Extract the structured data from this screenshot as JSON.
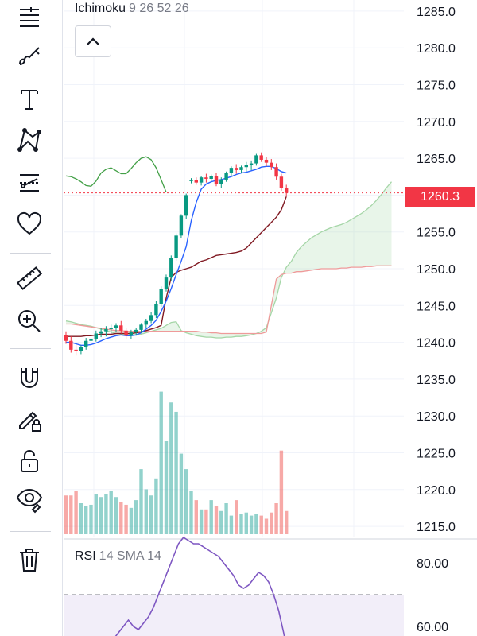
{
  "toolbar": {
    "tools": [
      {
        "name": "crosshair-lines-icon"
      },
      {
        "name": "brush-icon"
      },
      {
        "name": "text-icon"
      },
      {
        "name": "pattern-icon"
      },
      {
        "name": "forecast-icon"
      },
      {
        "name": "heart-icon"
      },
      {
        "name": "ruler-icon"
      },
      {
        "name": "zoom-in-icon"
      },
      {
        "name": "magnet-icon"
      },
      {
        "name": "lock-drawing-icon"
      },
      {
        "name": "unlock-icon"
      },
      {
        "name": "eye-icon"
      },
      {
        "name": "trash-icon"
      }
    ]
  },
  "ichimoku": {
    "name": "Ichimoku",
    "params": "9 26 52 26"
  },
  "rsi": {
    "name": "RSI",
    "params": "14 SMA 14"
  },
  "last_price": {
    "label": "1260.3",
    "value": 1260.3,
    "color": "#f23645"
  },
  "colors": {
    "up": "#089981",
    "down": "#f23645",
    "conversion": "#2962ff",
    "base": "#801922",
    "lagging": "#43a047",
    "lead_a": "#a5d6a7",
    "lead_b": "#ef9a9a",
    "vol_up": "#26a69a80",
    "vol_down": "#ef535080",
    "rsi_line": "#7e57c2"
  },
  "chart_data": [
    {
      "type": "candlestick",
      "price_axis": {
        "ticks": [
          "1285.0",
          "1280.0",
          "1275.0",
          "1270.0",
          "1265.0",
          "1260.0",
          "1255.0",
          "1250.0",
          "1245.0",
          "1240.0",
          "1235.0",
          "1230.0",
          "1225.0",
          "1220.0",
          "1215.0"
        ],
        "range": [
          1213.5,
          1286.5
        ]
      },
      "candles": [
        [
          1241.0,
          1241.5,
          1239.8,
          1240.2
        ],
        [
          1240.2,
          1240.8,
          1238.6,
          1239.0
        ],
        [
          1239.0,
          1239.6,
          1238.2,
          1238.8
        ],
        [
          1238.8,
          1239.6,
          1238.4,
          1239.4
        ],
        [
          1239.4,
          1240.6,
          1239.0,
          1240.2
        ],
        [
          1240.2,
          1240.9,
          1239.6,
          1240.5
        ],
        [
          1240.5,
          1241.6,
          1240.1,
          1241.2
        ],
        [
          1241.2,
          1241.9,
          1240.7,
          1241.5
        ],
        [
          1241.5,
          1242.2,
          1240.8,
          1241.8
        ],
        [
          1241.8,
          1242.4,
          1241.2,
          1241.9
        ],
        [
          1241.9,
          1242.6,
          1241.4,
          1242.3
        ],
        [
          1242.3,
          1242.9,
          1241.2,
          1241.6
        ],
        [
          1241.6,
          1241.9,
          1240.5,
          1240.9
        ],
        [
          1240.9,
          1241.7,
          1240.5,
          1241.4
        ],
        [
          1241.4,
          1242.0,
          1240.9,
          1241.7
        ],
        [
          1241.7,
          1242.6,
          1241.3,
          1242.4
        ],
        [
          1242.4,
          1243.2,
          1242.0,
          1242.9
        ],
        [
          1242.9,
          1244.1,
          1242.6,
          1243.7
        ],
        [
          1243.7,
          1245.6,
          1243.3,
          1245.2
        ],
        [
          1245.2,
          1247.6,
          1244.8,
          1247.3
        ],
        [
          1247.3,
          1249.2,
          1246.9,
          1248.8
        ],
        [
          1248.8,
          1251.8,
          1248.4,
          1251.5
        ],
        [
          1251.5,
          1254.8,
          1251.1,
          1254.5
        ],
        [
          1254.5,
          1257.4,
          1254.1,
          1257.2
        ],
        [
          1257.2,
          1260.2,
          1256.8,
          1260.0
        ],
        [
          1262.0,
          1262.3,
          1261.6,
          1262.0
        ],
        [
          1262.0,
          1262.4,
          1261.4,
          1261.7
        ],
        [
          1261.7,
          1262.6,
          1261.3,
          1262.4
        ],
        [
          1262.4,
          1262.9,
          1261.7,
          1262.2
        ],
        [
          1262.2,
          1262.8,
          1261.8,
          1262.6
        ],
        [
          1262.6,
          1263.0,
          1261.2,
          1261.5
        ],
        [
          1261.5,
          1262.4,
          1261.0,
          1262.1
        ],
        [
          1262.1,
          1263.2,
          1261.8,
          1263.0
        ],
        [
          1263.0,
          1263.9,
          1262.6,
          1263.7
        ],
        [
          1263.7,
          1264.2,
          1262.9,
          1263.4
        ],
        [
          1263.4,
          1264.0,
          1263.0,
          1263.8
        ],
        [
          1263.8,
          1264.5,
          1263.2,
          1264.1
        ],
        [
          1264.1,
          1264.7,
          1263.4,
          1264.3
        ],
        [
          1264.3,
          1265.6,
          1264.0,
          1265.4
        ],
        [
          1265.4,
          1265.8,
          1264.5,
          1264.8
        ],
        [
          1264.8,
          1265.2,
          1263.9,
          1264.4
        ],
        [
          1264.4,
          1264.9,
          1263.4,
          1263.8
        ],
        [
          1263.8,
          1264.3,
          1262.1,
          1262.5
        ],
        [
          1262.5,
          1262.9,
          1260.6,
          1261.0
        ],
        [
          1261.0,
          1261.4,
          1259.8,
          1260.3
        ]
      ],
      "conversion_line": [
        1240.0,
        1240.0,
        1239.8,
        1239.6,
        1239.6,
        1239.7,
        1239.9,
        1240.2,
        1240.5,
        1240.7,
        1240.9,
        1241.0,
        1240.9,
        1240.9,
        1241.0,
        1241.3,
        1241.8,
        1242.3,
        1243.0,
        1244.2,
        1245.6,
        1247.3,
        1249.2,
        1251.0,
        1253.0,
        1256.5,
        1259.0,
        1260.8,
        1261.5,
        1261.8,
        1262.0,
        1262.1,
        1262.3,
        1262.5,
        1262.8,
        1263.0,
        1263.1,
        1263.3,
        1263.5,
        1263.8,
        1263.9,
        1263.9,
        1263.6,
        1263.2,
        1263.0
      ],
      "base_line": [
        1240.8,
        1240.8,
        1240.8,
        1240.8,
        1240.9,
        1240.9,
        1241.0,
        1241.1,
        1241.1,
        1241.1,
        1241.2,
        1241.2,
        1241.2,
        1241.2,
        1241.3,
        1241.4,
        1241.6,
        1241.8,
        1242.0,
        1242.3,
        1246.0,
        1248.8,
        1249.5,
        1249.8,
        1250.0,
        1250.2,
        1250.6,
        1251.0,
        1251.2,
        1251.5,
        1251.8,
        1251.9,
        1252.0,
        1252.1,
        1252.2,
        1252.4,
        1252.8,
        1253.5,
        1254.2,
        1254.9,
        1255.6,
        1256.3,
        1257.0,
        1258.0,
        1259.8
      ],
      "lagging_span": [
        1262.6,
        1262.5,
        1262.2,
        1261.8,
        1261.3,
        1261.2,
        1261.9,
        1263.0,
        1263.5,
        1263.7,
        1263.3,
        1262.9,
        1262.9,
        1263.6,
        1264.4,
        1265.0,
        1265.2,
        1264.8,
        1263.7,
        1262.1,
        1260.4
      ],
      "leading_span_a": [
        1242.9,
        1242.8,
        1242.6,
        1242.4,
        1242.3,
        1242.2,
        1242.0,
        1241.8,
        1241.6,
        1241.4,
        1241.2,
        1241.1,
        1241.0,
        1241.0,
        1241.0,
        1241.1,
        1241.3,
        1241.5,
        1241.7,
        1241.9,
        1242.3,
        1242.7,
        1242.8,
        1241.6,
        1241.3,
        1241.1,
        1240.9,
        1240.8,
        1240.7,
        1240.7,
        1240.6,
        1240.6,
        1240.7,
        1240.7,
        1240.8,
        1240.8,
        1240.9,
        1241.0,
        1241.2,
        1241.5,
        1242.0,
        1244.0,
        1246.0,
        1248.8,
        1250.2,
        1251.0,
        1252.2,
        1253.0,
        1253.6,
        1254.2,
        1254.6,
        1255.0,
        1255.3,
        1255.6,
        1255.8,
        1256.0,
        1256.3,
        1256.7,
        1257.1,
        1257.5,
        1258.0,
        1258.6,
        1259.3,
        1260.1,
        1261.0,
        1261.8
      ],
      "leading_span_b": [
        1242.5,
        1242.5,
        1242.4,
        1242.3,
        1242.2,
        1242.1,
        1242.0,
        1241.9,
        1241.8,
        1241.7,
        1241.6,
        1241.6,
        1241.5,
        1241.5,
        1241.5,
        1241.5,
        1241.5,
        1241.5,
        1241.5,
        1241.5,
        1241.5,
        1241.5,
        1241.5,
        1241.5,
        1241.5,
        1241.5,
        1241.5,
        1241.4,
        1241.4,
        1241.3,
        1241.3,
        1241.2,
        1241.2,
        1241.2,
        1241.2,
        1241.2,
        1241.2,
        1241.2,
        1241.2,
        1241.2,
        1241.4,
        1245.0,
        1248.6,
        1249.2,
        1249.4,
        1249.4,
        1249.6,
        1249.6,
        1249.7,
        1249.8,
        1249.9,
        1250.0,
        1250.0,
        1250.0,
        1250.0,
        1250.1,
        1250.1,
        1250.2,
        1250.2,
        1250.2,
        1250.3,
        1250.3,
        1250.4,
        1250.4,
        1250.4,
        1250.4
      ],
      "volume": [
        0.25,
        0.25,
        0.28,
        0.2,
        0.18,
        0.19,
        0.26,
        0.24,
        0.26,
        0.28,
        0.24,
        0.21,
        0.19,
        0.17,
        0.22,
        0.42,
        0.29,
        0.25,
        0.36,
        0.92,
        0.6,
        0.85,
        0.79,
        0.52,
        0.42,
        0.28,
        0.22,
        0.16,
        0.16,
        0.22,
        0.18,
        0.15,
        0.2,
        0.12,
        0.22,
        0.13,
        0.14,
        0.12,
        0.13,
        0.12,
        0.1,
        0.14,
        0.2,
        0.54,
        0.15
      ]
    },
    {
      "type": "line",
      "name": "RSI",
      "axis_ticks": [
        "80.00",
        "60.00"
      ],
      "upper_band": 70,
      "range": [
        57,
        87
      ],
      "values": [
        52,
        54,
        56,
        58,
        60,
        62,
        60,
        59,
        61,
        63,
        66,
        70,
        74,
        78,
        82,
        86,
        88,
        87,
        86,
        86,
        85,
        84,
        83,
        82,
        80,
        78,
        76,
        73,
        72,
        73,
        75,
        77,
        76,
        74,
        70,
        65,
        58,
        50
      ]
    }
  ]
}
